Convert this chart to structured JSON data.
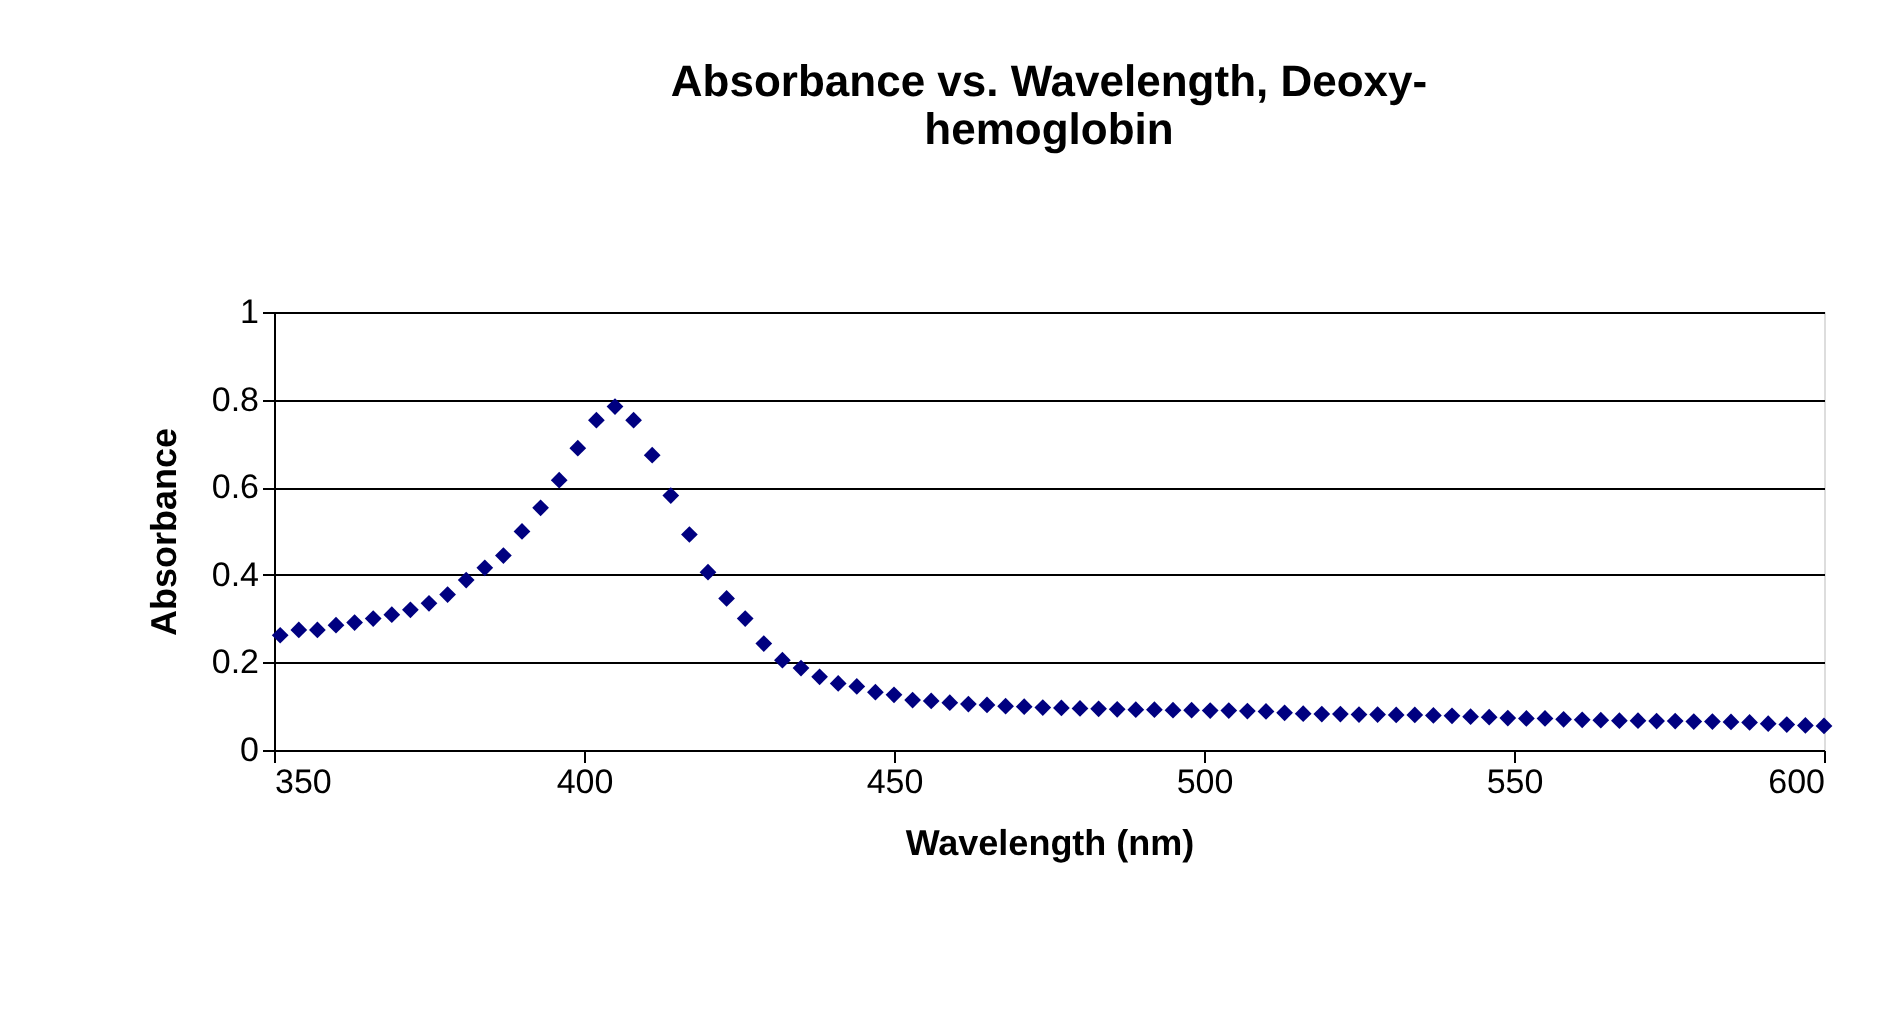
{
  "chart_data": {
    "type": "scatter",
    "title": "Absorbance vs. Wavelength, Deoxy-hemoglobin",
    "xlabel": "Wavelength (nm)",
    "ylabel": "Absorbance",
    "x": [
      351,
      354,
      357,
      360,
      363,
      366,
      369,
      372,
      375,
      378,
      381,
      384,
      387,
      390,
      393,
      396,
      399,
      402,
      405,
      408,
      411,
      414,
      417,
      420,
      423,
      426,
      429,
      432,
      435,
      438,
      441,
      444,
      447,
      450,
      453,
      456,
      459,
      462,
      465,
      468,
      471,
      474,
      477,
      480,
      483,
      486,
      489,
      492,
      495,
      498,
      501,
      504,
      507,
      510,
      513,
      516,
      519,
      522,
      525,
      528,
      531,
      534,
      537,
      540,
      543,
      546,
      549,
      552,
      555,
      558,
      561,
      564,
      567,
      570,
      573,
      576,
      579,
      582,
      585,
      588,
      591,
      594,
      597,
      600
    ],
    "series": [
      {
        "color": "#000080",
        "values": [
          0.262,
          0.274,
          0.274,
          0.285,
          0.291,
          0.3,
          0.309,
          0.32,
          0.335,
          0.355,
          0.388,
          0.416,
          0.444,
          0.499,
          0.553,
          0.616,
          0.689,
          0.753,
          0.784,
          0.753,
          0.673,
          0.581,
          0.492,
          0.406,
          0.346,
          0.3,
          0.243,
          0.205,
          0.187,
          0.167,
          0.152,
          0.145,
          0.132,
          0.126,
          0.114,
          0.112,
          0.108,
          0.105,
          0.103,
          0.1,
          0.099,
          0.097,
          0.096,
          0.095,
          0.094,
          0.093,
          0.092,
          0.092,
          0.091,
          0.091,
          0.09,
          0.09,
          0.089,
          0.088,
          0.085,
          0.083,
          0.082,
          0.082,
          0.081,
          0.081,
          0.08,
          0.08,
          0.079,
          0.078,
          0.076,
          0.075,
          0.073,
          0.072,
          0.072,
          0.07,
          0.069,
          0.068,
          0.067,
          0.067,
          0.066,
          0.066,
          0.065,
          0.065,
          0.064,
          0.063,
          0.06,
          0.058,
          0.056,
          0.055
        ]
      }
    ],
    "xlim": [
      350,
      600
    ],
    "xticks": [
      350,
      400,
      450,
      500,
      550,
      600
    ],
    "ylim": [
      0,
      1
    ],
    "yticks": [
      0,
      0.2,
      0.4,
      0.6,
      0.8,
      1
    ],
    "grid": "y",
    "marker": "diamond",
    "legend": false
  }
}
